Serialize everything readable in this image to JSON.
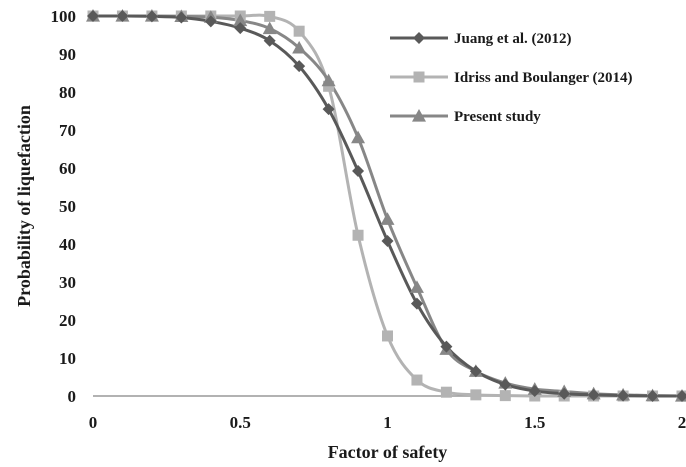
{
  "chart_data": {
    "type": "line",
    "xlabel": "Factor of safety",
    "ylabel": "Probability of liquefaction",
    "xlim": [
      0,
      2
    ],
    "ylim": [
      0,
      100
    ],
    "x_ticks": [
      0,
      0.5,
      1,
      1.5,
      2
    ],
    "x_tick_labels": [
      "0",
      "0.5",
      "1",
      "1.5",
      "2"
    ],
    "y_ticks": [
      0,
      10,
      20,
      30,
      40,
      50,
      60,
      70,
      80,
      90,
      100
    ],
    "y_tick_labels": [
      "0",
      "10",
      "20",
      "30",
      "40",
      "50",
      "60",
      "70",
      "80",
      "90",
      "100"
    ],
    "grid": false,
    "legend_position": "top-right",
    "series": [
      {
        "name": "Juang et al. (2012)",
        "color": "#595959",
        "marker": "diamond",
        "x": [
          0,
          0.1,
          0.2,
          0.3,
          0.4,
          0.5,
          0.6,
          0.7,
          0.8,
          0.9,
          1.0,
          1.1,
          1.2,
          1.3,
          1.4,
          1.5,
          1.6,
          1.7,
          1.8,
          1.9,
          2.0
        ],
        "values": [
          100,
          100,
          99.9,
          99.6,
          98.6,
          96.8,
          93.5,
          86.8,
          75.5,
          59.2,
          40.8,
          24.3,
          13,
          6.5,
          3,
          1.3,
          0.6,
          0.3,
          0.1,
          0,
          0
        ]
      },
      {
        "name": "Idriss and Boulanger (2014)",
        "color": "#b3b3b3",
        "marker": "square",
        "x": [
          0,
          0.1,
          0.2,
          0.3,
          0.4,
          0.5,
          0.6,
          0.7,
          0.8,
          0.9,
          1.0,
          1.1,
          1.2,
          1.3,
          1.4,
          1.5,
          1.6,
          1.7,
          1.8,
          1.9,
          2.0
        ],
        "values": [
          100,
          100,
          100,
          100,
          100,
          100,
          99.9,
          96,
          81.5,
          42.3,
          15.8,
          4.2,
          1,
          0.3,
          0.1,
          0,
          0,
          0,
          0,
          0,
          0
        ]
      },
      {
        "name": "Present study",
        "color": "#878787",
        "marker": "triangle",
        "x": [
          0,
          0.1,
          0.2,
          0.3,
          0.4,
          0.5,
          0.6,
          0.7,
          0.8,
          0.9,
          1.0,
          1.1,
          1.2,
          1.3,
          1.4,
          1.5,
          1.6,
          1.7,
          1.8,
          1.9,
          2.0
        ],
        "values": [
          100,
          100,
          100,
          99.9,
          99.7,
          98.8,
          96.7,
          91.6,
          83,
          68,
          46.5,
          28.6,
          12.3,
          6.5,
          3.4,
          1.8,
          1.2,
          0.6,
          0.3,
          0.1,
          0
        ]
      }
    ]
  }
}
